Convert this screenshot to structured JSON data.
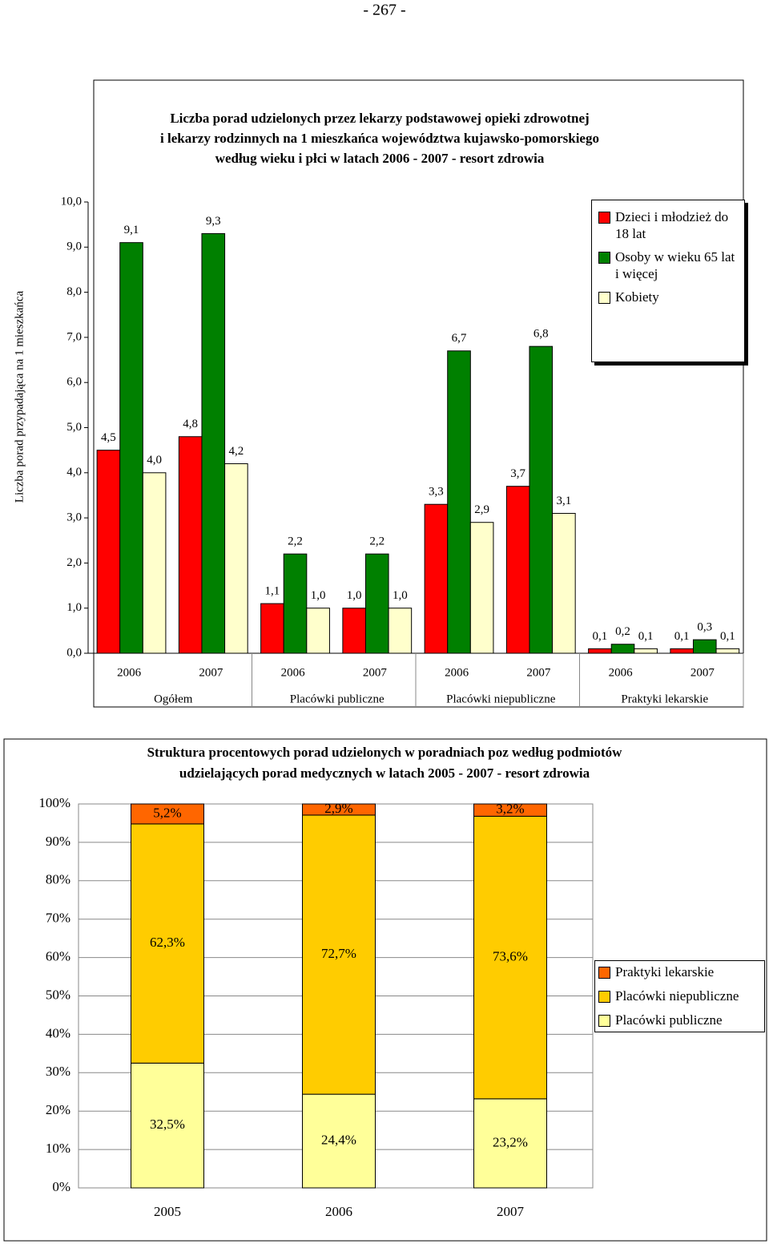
{
  "page_header": "- 267 -",
  "chart_data": [
    {
      "type": "grouped-bar",
      "title": [
        "Liczba porad udzielonych  przez lekarzy podstawowej opieki zdrowotnej",
        "i lekarzy rodzinnych na 1 mieszkańca województwa kujawsko-pomorskiego",
        "według wieku i płci w latach 2006 - 2007 - resort zdrowia"
      ],
      "y_label": "Liczba porad przypadająca na 1 mieszkańca",
      "categories": [
        "2006",
        "2007",
        "2006",
        "2007",
        "2006",
        "2007",
        "2006",
        "2007"
      ],
      "category_groups": [
        "Ogółem",
        "Placówki publiczne",
        "Placówki niepubliczne",
        "Praktyki lekarskie"
      ],
      "ylim": [
        0,
        10
      ],
      "yticks": [
        {
          "value": 0,
          "label": "0,0"
        },
        {
          "value": 1,
          "label": "1,0"
        },
        {
          "value": 2,
          "label": "2,0"
        },
        {
          "value": 3,
          "label": "3,0"
        },
        {
          "value": 4,
          "label": "4,0"
        },
        {
          "value": 5,
          "label": "5,0"
        },
        {
          "value": 6,
          "label": "6,0"
        },
        {
          "value": 7,
          "label": "7,0"
        },
        {
          "value": 8,
          "label": "8,0"
        },
        {
          "value": 9,
          "label": "9,0"
        },
        {
          "value": 10,
          "label": "10,0"
        }
      ],
      "series": [
        {
          "name": "Dzieci i młodzież do 18 lat",
          "color": "#ff0000",
          "values": [
            4.5,
            4.8,
            1.1,
            1.0,
            3.3,
            3.7,
            0.1,
            0.1
          ],
          "value_labels": [
            "4,5",
            "4,8",
            "1,1",
            "1,0",
            "3,3",
            "3,7",
            "0,1",
            "0,1"
          ]
        },
        {
          "name": "Osoby w wieku 65 lat i więcej",
          "color": "#008000",
          "values": [
            9.1,
            9.3,
            2.2,
            2.2,
            6.7,
            6.8,
            0.2,
            0.3
          ],
          "value_labels": [
            "9,1",
            "9,3",
            "2,2",
            "2,2",
            "6,7",
            "6,8",
            "0,2",
            "0,3"
          ]
        },
        {
          "name": "Kobiety",
          "color": "#ffffcc",
          "values": [
            4.0,
            4.2,
            1.0,
            1.0,
            2.9,
            3.1,
            0.1,
            0.1
          ],
          "value_labels": [
            "4,0",
            "4,2",
            "1,0",
            "1,0",
            "2,9",
            "3,1",
            "0,1",
            "0,1"
          ]
        }
      ]
    },
    {
      "type": "stacked-bar",
      "title": [
        "Struktura procentowych porad udzielonych w poradniach poz według podmiotów",
        "udzielających porad medycznych w latach 2005 - 2007 - resort zdrowia"
      ],
      "categories": [
        "2005",
        "2006",
        "2007"
      ],
      "ylim": [
        0,
        100
      ],
      "yticks": [
        {
          "value": 0,
          "label": "0%"
        },
        {
          "value": 10,
          "label": "10%"
        },
        {
          "value": 20,
          "label": "20%"
        },
        {
          "value": 30,
          "label": "30%"
        },
        {
          "value": 40,
          "label": "40%"
        },
        {
          "value": 50,
          "label": "50%"
        },
        {
          "value": 60,
          "label": "60%"
        },
        {
          "value": 70,
          "label": "70%"
        },
        {
          "value": 80,
          "label": "80%"
        },
        {
          "value": 90,
          "label": "90%"
        },
        {
          "value": 100,
          "label": "100%"
        }
      ],
      "grid": true,
      "series": [
        {
          "name": "Placówki publiczne",
          "color": "#ffff99",
          "values": [
            32.5,
            24.4,
            23.2
          ],
          "value_labels": [
            "32,5%",
            "24,4%",
            "23,2%"
          ]
        },
        {
          "name": "Placówki niepubliczne",
          "color": "#ffcc00",
          "values": [
            62.3,
            72.7,
            73.6
          ],
          "value_labels": [
            "62,3%",
            "72,7%",
            "73,6%"
          ]
        },
        {
          "name": "Praktyki lekarskie",
          "color": "#ff6600",
          "values": [
            5.2,
            2.9,
            3.2
          ],
          "value_labels": [
            "5,2%",
            "2,9%",
            "3,2%"
          ]
        }
      ]
    }
  ]
}
